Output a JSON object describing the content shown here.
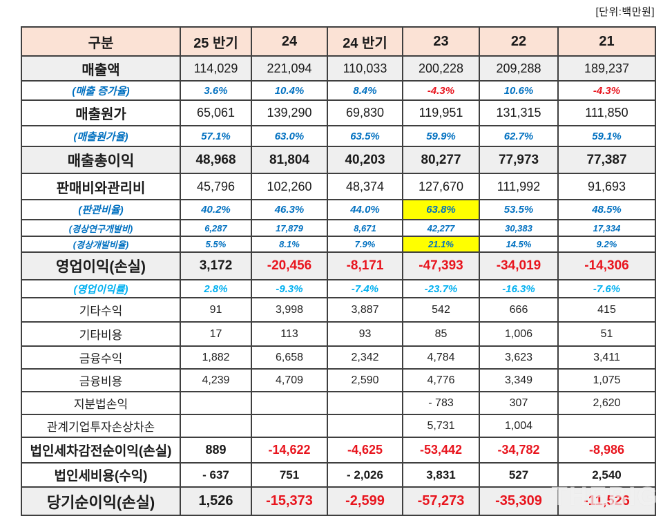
{
  "unit_label": "[단위:백만원]",
  "watermark": "THEBIG",
  "colors": {
    "header_bg": "#fbe2d5",
    "band_bg": "#efefef",
    "blue": "#0070c0",
    "cyan": "#00b0f0",
    "red": "#e8151e",
    "highlight": "#ffff00",
    "border": "#3f3f3f"
  },
  "chart_data": {
    "type": "table",
    "title": "",
    "unit": "[단위:백만원]",
    "columns": [
      "구분",
      "25 반기",
      "24",
      "24 반기",
      "23",
      "22",
      "21"
    ],
    "rows": [
      {
        "label": "매출액",
        "type": "stmt",
        "band": true,
        "values": [
          "114,029",
          "221,094",
          "110,033",
          "200,228",
          "209,288",
          "189,237"
        ]
      },
      {
        "label": "(매출 증가율)",
        "type": "pct",
        "values": [
          "3.6%",
          "10.4%",
          "8.4%",
          "-4.3%",
          "10.6%",
          "-4.3%"
        ],
        "red": [
          false,
          false,
          false,
          true,
          false,
          true
        ]
      },
      {
        "label": "매출원가",
        "type": "stmt",
        "values": [
          "65,061",
          "139,290",
          "69,830",
          "119,951",
          "131,315",
          "111,850"
        ]
      },
      {
        "label": "(매출원가율)",
        "type": "pct",
        "values": [
          "57.1%",
          "63.0%",
          "63.5%",
          "59.9%",
          "62.7%",
          "59.1%"
        ]
      },
      {
        "label": "매출총이익",
        "type": "total",
        "band": true,
        "values": [
          "48,968",
          "81,804",
          "40,203",
          "80,277",
          "77,973",
          "77,387"
        ]
      },
      {
        "label": "판매비와관리비",
        "type": "stmt",
        "values": [
          "45,796",
          "102,260",
          "48,374",
          "127,670",
          "111,992",
          "91,693"
        ]
      },
      {
        "label": "(판관비율)",
        "type": "pct",
        "values": [
          "40.2%",
          "46.3%",
          "44.0%",
          "63.8%",
          "53.5%",
          "48.5%"
        ],
        "hl": [
          false,
          false,
          false,
          true,
          false,
          false
        ]
      },
      {
        "label": "(경상연구개발비)",
        "type": "pctsm",
        "thin": true,
        "values": [
          "6,287",
          "17,879",
          "8,671",
          "42,277",
          "30,383",
          "17,334"
        ]
      },
      {
        "label": "(경상개발비율)",
        "type": "pctsm",
        "thin": true,
        "values": [
          "5.5%",
          "8.1%",
          "7.9%",
          "21.1%",
          "14.5%",
          "9.2%"
        ],
        "hl": [
          false,
          false,
          false,
          true,
          false,
          false
        ]
      },
      {
        "label": "영업이익(손실)",
        "type": "total",
        "band": true,
        "values": [
          "3,172",
          "-20,456",
          "-8,171",
          "-47,393",
          "-34,019",
          "-14,306"
        ],
        "red": [
          false,
          true,
          true,
          true,
          true,
          true
        ]
      },
      {
        "label": "(영업이익률)",
        "type": "pctcyan",
        "values": [
          "2.8%",
          "-9.3%",
          "-7.4%",
          "-23.7%",
          "-16.3%",
          "-7.6%"
        ]
      },
      {
        "label": "기타수익",
        "type": "plain",
        "values": [
          "91",
          "3,998",
          "3,887",
          "542",
          "666",
          "415"
        ]
      },
      {
        "label": "기타비용",
        "type": "plain",
        "values": [
          "17",
          "113",
          "93",
          "85",
          "1,006",
          "51"
        ]
      },
      {
        "label": "금융수익",
        "type": "plain",
        "values": [
          "1,882",
          "6,658",
          "2,342",
          "4,784",
          "3,623",
          "3,411"
        ]
      },
      {
        "label": "금융비용",
        "type": "plain",
        "values": [
          "4,239",
          "4,709",
          "2,590",
          "4,776",
          "3,349",
          "1,075"
        ]
      },
      {
        "label": "지분법손익",
        "type": "plain",
        "values": [
          "",
          "",
          "",
          "- 783",
          "307",
          "2,620"
        ]
      },
      {
        "label": "관계기업투자손상차손",
        "type": "plain",
        "values": [
          "",
          "",
          "",
          "5,731",
          "1,004",
          ""
        ]
      },
      {
        "label": "법인세차감전순이익(손실)",
        "type": "pretax",
        "values": [
          "889",
          "-14,622",
          "-4,625",
          "-53,442",
          "-34,782",
          "-8,986"
        ],
        "red": [
          false,
          true,
          true,
          true,
          true,
          true
        ]
      },
      {
        "label": "법인세비용(수익)",
        "type": "tax",
        "values": [
          "- 637",
          "751",
          "- 2,026",
          "3,831",
          "527",
          "2,540"
        ]
      },
      {
        "label": "당기순이익(손실)",
        "type": "grand",
        "band": true,
        "values": [
          "1,526",
          "-15,373",
          "-2,599",
          "-57,273",
          "-35,309",
          "-11,526"
        ],
        "red": [
          false,
          true,
          true,
          true,
          true,
          true
        ]
      }
    ]
  }
}
